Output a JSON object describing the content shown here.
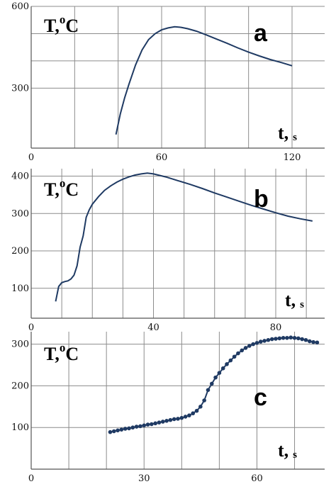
{
  "chart_data": [
    {
      "type": "line",
      "panel_label": "a",
      "ylabel": "T,",
      "ylabel_sup": "o",
      "ylabel_unit": "C",
      "xlabel": "t,",
      "xlabel_unit": "s",
      "xlim": [
        0,
        135
      ],
      "ylim": [
        80,
        600
      ],
      "x_ticks": [
        0,
        60,
        120
      ],
      "y_ticks": [
        300,
        600
      ],
      "x_grid": [
        20,
        40,
        60,
        80,
        100,
        120
      ],
      "y_grid": [
        300,
        400,
        500,
        600
      ],
      "markers": false,
      "series": [
        {
          "x": [
            39,
            41,
            43,
            45,
            48,
            51,
            54,
            57,
            60,
            63,
            66,
            69,
            72,
            76,
            80,
            85,
            90,
            95,
            100,
            105,
            110,
            115,
            120
          ],
          "y": [
            130,
            205,
            265,
            315,
            385,
            440,
            478,
            500,
            514,
            521,
            525,
            523,
            518,
            509,
            497,
            481,
            465,
            448,
            432,
            418,
            405,
            394,
            382
          ]
        }
      ]
    },
    {
      "type": "line",
      "panel_label": "b",
      "ylabel": "T,",
      "ylabel_sup": "o",
      "ylabel_unit": "C",
      "xlabel": "t,",
      "xlabel_unit": "s",
      "xlim": [
        0,
        96
      ],
      "ylim": [
        20,
        420
      ],
      "x_ticks": [
        0,
        40,
        80
      ],
      "y_ticks": [
        100,
        200,
        300,
        400
      ],
      "x_grid": [
        10,
        20,
        30,
        40,
        50,
        60,
        70,
        80,
        90
      ],
      "y_grid": [
        100,
        200,
        300,
        400
      ],
      "markers": false,
      "series": [
        {
          "x": [
            8,
            9,
            10,
            11,
            12,
            13,
            14,
            15,
            16,
            17,
            18,
            19,
            20,
            22,
            24,
            26,
            28,
            30,
            32,
            34,
            36,
            38,
            40,
            44,
            48,
            52,
            56,
            60,
            64,
            68,
            72,
            76,
            80,
            84,
            88,
            92
          ],
          "y": [
            65,
            105,
            115,
            118,
            120,
            125,
            135,
            160,
            210,
            240,
            290,
            310,
            325,
            345,
            362,
            374,
            384,
            392,
            398,
            403,
            406,
            408,
            406,
            398,
            388,
            378,
            367,
            355,
            344,
            333,
            322,
            312,
            302,
            293,
            286,
            280
          ]
        }
      ]
    },
    {
      "type": "scatter",
      "panel_label": "c",
      "ylabel": "T,",
      "ylabel_sup": "o",
      "ylabel_unit": "C",
      "xlabel": "t,",
      "xlabel_unit": "s",
      "xlim": [
        0,
        78
      ],
      "ylim": [
        0,
        330
      ],
      "x_ticks": [
        0,
        30,
        60
      ],
      "y_ticks": [
        100,
        200,
        300
      ],
      "x_grid": [
        10,
        20,
        30,
        40,
        50,
        60,
        70
      ],
      "y_grid": [
        100,
        200,
        300
      ],
      "markers": true,
      "series": [
        {
          "x": [
            21,
            22,
            23,
            24,
            25,
            26,
            27,
            28,
            29,
            30,
            31,
            32,
            33,
            34,
            35,
            36,
            37,
            38,
            39,
            40,
            41,
            42,
            43,
            44,
            45,
            46,
            47,
            48,
            49,
            50,
            51,
            52,
            53,
            54,
            55,
            56,
            57,
            58,
            59,
            60,
            61,
            62,
            63,
            64,
            65,
            66,
            67,
            68,
            69,
            70,
            71,
            72,
            73,
            74,
            75,
            76
          ],
          "y": [
            89,
            91,
            93,
            95,
            97,
            98,
            100,
            102,
            103,
            105,
            107,
            108,
            110,
            112,
            114,
            116,
            118,
            120,
            121,
            123,
            126,
            129,
            134,
            140,
            150,
            165,
            190,
            205,
            220,
            231,
            242,
            252,
            261,
            270,
            278,
            285,
            291,
            296,
            300,
            303,
            306,
            308,
            310,
            312,
            313,
            314,
            315,
            315,
            316,
            315,
            314,
            312,
            310,
            307,
            305,
            304
          ]
        }
      ]
    }
  ]
}
